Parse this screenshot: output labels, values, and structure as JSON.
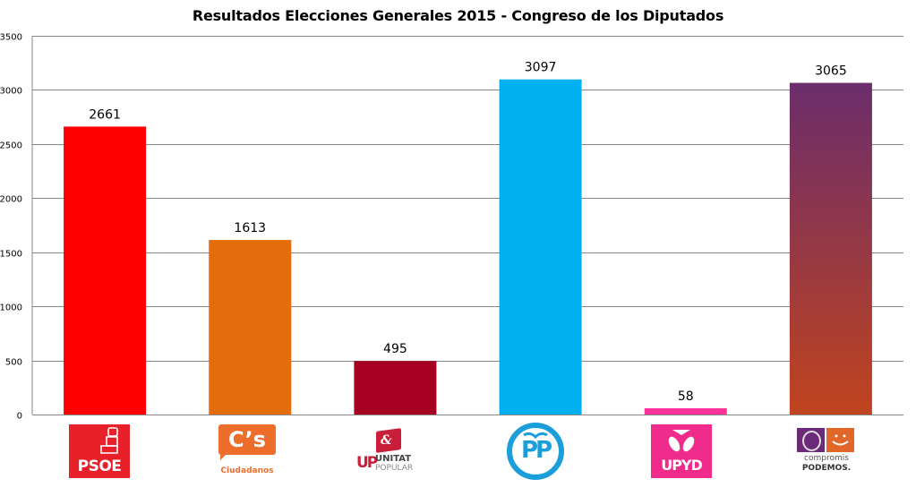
{
  "chart_data": {
    "type": "bar",
    "title": "Resultados Elecciones Generales 2015 - Congreso de los Diputados",
    "xlabel": "",
    "ylabel": "",
    "ylim": [
      0,
      3500
    ],
    "yticks": [
      0,
      500,
      1000,
      1500,
      2000,
      2500,
      3000,
      3500
    ],
    "grid": true,
    "legend": "none",
    "categories": [
      "PSOE",
      "Ciudadanos",
      "Unitat Popular",
      "PP",
      "UPyD",
      "Compromís-Podemos"
    ],
    "values": [
      2661,
      1613,
      495,
      3097,
      58,
      3065
    ],
    "data_labels": [
      "2661",
      "1613",
      "495",
      "3097",
      "58",
      "3065"
    ],
    "colors": [
      "#ff0000",
      "#e46c0a",
      "#a50021",
      "#00b0f0",
      "#ff3399",
      "#6b2d6b"
    ],
    "gradient_last": [
      "#6b2d6b",
      "#c0441e"
    ]
  },
  "logos": {
    "psoe": {
      "text": "PSOE",
      "color": "#e8202a"
    },
    "ciudadanos": {
      "text": "C’s",
      "subtext": "Ciudadanos",
      "color": "#ed6d2b"
    },
    "up": {
      "mark": "UP",
      "line1": "UNITAT",
      "line2": "POPULAR",
      "color": "#c81e3a",
      "accent": "#1f2a7a"
    },
    "pp": {
      "text": "PP",
      "color": "#1a9fdb"
    },
    "upyd": {
      "text": "UPYD",
      "color": "#ef2c8b"
    },
    "podemos": {
      "line1": "compromis",
      "line2": "PODEMOS.",
      "purple": "#6c2b7a",
      "orange": "#e0662a"
    }
  }
}
